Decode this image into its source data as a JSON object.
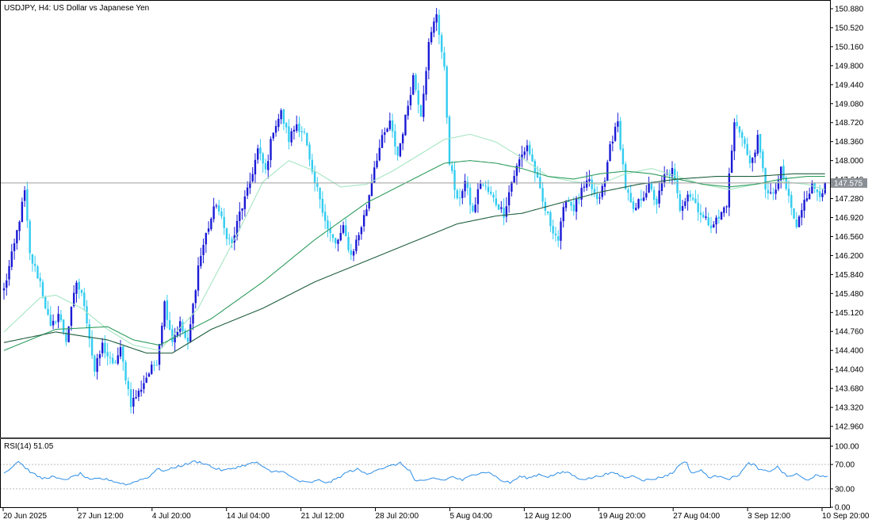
{
  "header": {
    "symbol_title": "USDJPY, H4:  US Dollar vs Japanese Yen"
  },
  "colors": {
    "bull_body": "#1a1ad6",
    "bear_body": "#33ccf0",
    "ma_fast": "#a6e6c3",
    "ma_mid": "#2f9e5f",
    "ma_slow": "#1f5e3e",
    "current_line": "#9e9e9e",
    "rsi_line": "#2e8ee6",
    "rsi_level": "#bdbdbd",
    "price_label_bg": "#8a8f96"
  },
  "chart_data": [
    {
      "type": "candlestick",
      "symbol": "USDJPY",
      "timeframe": "H4",
      "ylim": [
        142.75,
        151.0
      ],
      "y_ticks": [
        "150.880",
        "150.520",
        "150.160",
        "149.800",
        "149.440",
        "149.080",
        "148.720",
        "148.360",
        "148.000",
        "147.640",
        "147.280",
        "146.920",
        "146.560",
        "146.200",
        "145.840",
        "145.480",
        "145.120",
        "144.760",
        "144.400",
        "144.040",
        "143.680",
        "143.320",
        "142.960"
      ],
      "x_ticks": [
        "20 Jun 2025",
        "27 Jun 12:00",
        "4 Jul 20:00",
        "14 Jul 04:00",
        "21 Jul 12:00",
        "28 Jul 20:00",
        "5 Aug 04:00",
        "12 Aug 12:00",
        "19 Aug 20:00",
        "27 Aug 04:00",
        "3 Sep 12:00",
        "10 Sep 20:00"
      ],
      "current_price": "147.575",
      "anchors": [
        [
          0,
          145.55
        ],
        [
          4,
          146.4
        ],
        [
          8,
          147.4
        ],
        [
          10,
          146.2
        ],
        [
          14,
          145.7
        ],
        [
          18,
          144.8
        ],
        [
          21,
          145.1
        ],
        [
          24,
          144.6
        ],
        [
          28,
          145.7
        ],
        [
          31,
          145.3
        ],
        [
          35,
          144.0
        ],
        [
          38,
          144.5
        ],
        [
          42,
          144.1
        ],
        [
          45,
          144.4
        ],
        [
          49,
          143.4
        ],
        [
          52,
          143.6
        ],
        [
          55,
          143.9
        ],
        [
          59,
          144.2
        ],
        [
          62,
          145.3
        ],
        [
          65,
          144.6
        ],
        [
          68,
          144.9
        ],
        [
          71,
          144.5
        ],
        [
          75,
          146.0
        ],
        [
          78,
          146.6
        ],
        [
          82,
          147.2
        ],
        [
          85,
          146.7
        ],
        [
          88,
          146.4
        ],
        [
          91,
          147.0
        ],
        [
          94,
          147.4
        ],
        [
          98,
          148.2
        ],
        [
          101,
          147.8
        ],
        [
          104,
          148.6
        ],
        [
          107,
          148.9
        ],
        [
          110,
          148.4
        ],
        [
          113,
          148.7
        ],
        [
          116,
          148.5
        ],
        [
          119,
          147.7
        ],
        [
          122,
          147.3
        ],
        [
          125,
          146.7
        ],
        [
          128,
          146.4
        ],
        [
          131,
          146.7
        ],
        [
          134,
          146.2
        ],
        [
          137,
          146.6
        ],
        [
          140,
          147.1
        ],
        [
          143,
          147.9
        ],
        [
          146,
          148.4
        ],
        [
          149,
          148.7
        ],
        [
          152,
          148.1
        ],
        [
          155,
          148.8
        ],
        [
          158,
          149.6
        ],
        [
          161,
          148.9
        ],
        [
          164,
          150.2
        ],
        [
          167,
          150.8
        ],
        [
          170,
          149.7
        ],
        [
          172,
          148.0
        ],
        [
          175,
          147.2
        ],
        [
          178,
          147.6
        ],
        [
          181,
          147.0
        ],
        [
          184,
          147.6
        ],
        [
          187,
          147.4
        ],
        [
          190,
          147.2
        ],
        [
          193,
          147.0
        ],
        [
          196,
          147.6
        ],
        [
          199,
          148.0
        ],
        [
          202,
          148.3
        ],
        [
          205,
          147.8
        ],
        [
          208,
          147.2
        ],
        [
          211,
          146.8
        ],
        [
          214,
          146.5
        ],
        [
          217,
          147.3
        ],
        [
          220,
          147.1
        ],
        [
          223,
          147.4
        ],
        [
          226,
          147.6
        ],
        [
          229,
          147.2
        ],
        [
          232,
          147.6
        ],
        [
          234,
          148.3
        ],
        [
          237,
          148.7
        ],
        [
          240,
          147.5
        ],
        [
          243,
          147.0
        ],
        [
          246,
          147.3
        ],
        [
          249,
          147.5
        ],
        [
          252,
          147.2
        ],
        [
          255,
          147.7
        ],
        [
          258,
          147.8
        ],
        [
          261,
          147.1
        ],
        [
          264,
          147.4
        ],
        [
          267,
          147.2
        ],
        [
          270,
          146.9
        ],
        [
          273,
          146.8
        ],
        [
          276,
          146.9
        ],
        [
          279,
          147.2
        ],
        [
          282,
          148.7
        ],
        [
          285,
          148.5
        ],
        [
          288,
          147.9
        ],
        [
          291,
          148.4
        ],
        [
          294,
          147.5
        ],
        [
          297,
          147.3
        ],
        [
          300,
          147.8
        ],
        [
          303,
          147.3
        ],
        [
          306,
          146.7
        ],
        [
          309,
          147.3
        ],
        [
          312,
          147.5
        ],
        [
          315,
          147.4
        ],
        [
          317,
          147.5
        ]
      ],
      "series": [
        {
          "name": "MA fast",
          "anchors": [
            [
              0,
              144.75
            ],
            [
              14,
              145.4
            ],
            [
              20,
              145.45
            ],
            [
              30,
              145.2
            ],
            [
              40,
              144.8
            ],
            [
              50,
              144.5
            ],
            [
              60,
              144.4
            ],
            [
              75,
              145.2
            ],
            [
              90,
              146.6
            ],
            [
              100,
              147.6
            ],
            [
              110,
              148.0
            ],
            [
              120,
              147.8
            ],
            [
              130,
              147.5
            ],
            [
              140,
              147.55
            ],
            [
              150,
              147.8
            ],
            [
              160,
              148.1
            ],
            [
              170,
              148.4
            ],
            [
              180,
              148.5
            ],
            [
              190,
              148.35
            ],
            [
              200,
              148.05
            ],
            [
              210,
              147.7
            ],
            [
              220,
              147.6
            ],
            [
              230,
              147.55
            ],
            [
              240,
              147.75
            ],
            [
              250,
              147.85
            ],
            [
              260,
              147.7
            ],
            [
              270,
              147.55
            ],
            [
              280,
              147.45
            ],
            [
              290,
              147.55
            ],
            [
              300,
              147.6
            ],
            [
              310,
              147.55
            ],
            [
              317,
              147.45
            ]
          ]
        },
        {
          "name": "MA mid",
          "anchors": [
            [
              0,
              144.4
            ],
            [
              20,
              144.8
            ],
            [
              40,
              144.85
            ],
            [
              50,
              144.6
            ],
            [
              60,
              144.5
            ],
            [
              80,
              145.0
            ],
            [
              100,
              145.7
            ],
            [
              120,
              146.5
            ],
            [
              140,
              147.2
            ],
            [
              160,
              147.7
            ],
            [
              170,
              147.95
            ],
            [
              180,
              148.0
            ],
            [
              190,
              147.95
            ],
            [
              200,
              147.85
            ],
            [
              210,
              147.7
            ],
            [
              220,
              147.65
            ],
            [
              230,
              147.75
            ],
            [
              240,
              147.8
            ],
            [
              250,
              147.75
            ],
            [
              260,
              147.65
            ],
            [
              270,
              147.55
            ],
            [
              280,
              147.5
            ],
            [
              290,
              147.55
            ],
            [
              300,
              147.65
            ],
            [
              310,
              147.7
            ],
            [
              317,
              147.7
            ]
          ]
        },
        {
          "name": "MA slow",
          "anchors": [
            [
              0,
              144.55
            ],
            [
              20,
              144.75
            ],
            [
              40,
              144.6
            ],
            [
              55,
              144.35
            ],
            [
              65,
              144.35
            ],
            [
              80,
              144.8
            ],
            [
              100,
              145.2
            ],
            [
              120,
              145.7
            ],
            [
              140,
              146.1
            ],
            [
              160,
              146.5
            ],
            [
              175,
              146.8
            ],
            [
              190,
              146.95
            ],
            [
              200,
              147.0
            ],
            [
              215,
              147.2
            ],
            [
              230,
              147.4
            ],
            [
              245,
              147.55
            ],
            [
              260,
              147.65
            ],
            [
              275,
              147.7
            ],
            [
              290,
              147.7
            ],
            [
              305,
              147.75
            ],
            [
              317,
              147.75
            ]
          ]
        }
      ]
    },
    {
      "type": "line",
      "name": "RSI(14) 51.05",
      "title": "RSI(14) 51.05",
      "ylim": [
        0,
        100
      ],
      "levels": [
        30,
        70
      ],
      "y_ticks": [
        "100.00",
        "70.00",
        "30.00",
        "0.00"
      ],
      "anchors": [
        [
          0,
          56
        ],
        [
          4,
          68
        ],
        [
          6,
          76
        ],
        [
          8,
          68
        ],
        [
          12,
          55
        ],
        [
          16,
          47
        ],
        [
          20,
          50
        ],
        [
          24,
          45
        ],
        [
          28,
          48
        ],
        [
          32,
          55
        ],
        [
          36,
          44
        ],
        [
          40,
          47
        ],
        [
          44,
          45
        ],
        [
          48,
          40
        ],
        [
          52,
          37
        ],
        [
          56,
          44
        ],
        [
          60,
          48
        ],
        [
          64,
          62
        ],
        [
          68,
          60
        ],
        [
          72,
          66
        ],
        [
          76,
          70
        ],
        [
          80,
          75
        ],
        [
          84,
          72
        ],
        [
          88,
          64
        ],
        [
          92,
          60
        ],
        [
          96,
          64
        ],
        [
          100,
          68
        ],
        [
          104,
          72
        ],
        [
          106,
          74
        ],
        [
          108,
          66
        ],
        [
          112,
          58
        ],
        [
          116,
          60
        ],
        [
          120,
          50
        ],
        [
          124,
          42
        ],
        [
          128,
          40
        ],
        [
          132,
          44
        ],
        [
          136,
          40
        ],
        [
          140,
          48
        ],
        [
          144,
          58
        ],
        [
          148,
          62
        ],
        [
          152,
          54
        ],
        [
          156,
          62
        ],
        [
          160,
          65
        ],
        [
          164,
          70
        ],
        [
          166,
          72
        ],
        [
          170,
          60
        ],
        [
          172,
          44
        ],
        [
          176,
          42
        ],
        [
          180,
          48
        ],
        [
          184,
          44
        ],
        [
          188,
          50
        ],
        [
          192,
          44
        ],
        [
          196,
          52
        ],
        [
          200,
          58
        ],
        [
          204,
          56
        ],
        [
          208,
          44
        ],
        [
          212,
          40
        ],
        [
          216,
          50
        ],
        [
          220,
          48
        ],
        [
          224,
          54
        ],
        [
          228,
          50
        ],
        [
          232,
          55
        ],
        [
          236,
          58
        ],
        [
          240,
          48
        ],
        [
          244,
          46
        ],
        [
          248,
          50
        ],
        [
          252,
          54
        ],
        [
          256,
          56
        ],
        [
          260,
          48
        ],
        [
          264,
          52
        ],
        [
          268,
          44
        ],
        [
          272,
          46
        ],
        [
          276,
          50
        ],
        [
          280,
          56
        ],
        [
          284,
          74
        ],
        [
          286,
          72
        ],
        [
          288,
          56
        ],
        [
          292,
          60
        ],
        [
          296,
          48
        ],
        [
          300,
          52
        ],
        [
          304,
          46
        ],
        [
          308,
          54
        ],
        [
          312,
          72
        ],
        [
          314,
          70
        ],
        [
          316,
          62
        ],
        [
          320,
          58
        ],
        [
          324,
          66
        ],
        [
          328,
          50
        ],
        [
          332,
          54
        ],
        [
          336,
          44
        ],
        [
          340,
          52
        ],
        [
          342,
          49
        ],
        [
          345,
          51
        ]
      ]
    }
  ]
}
